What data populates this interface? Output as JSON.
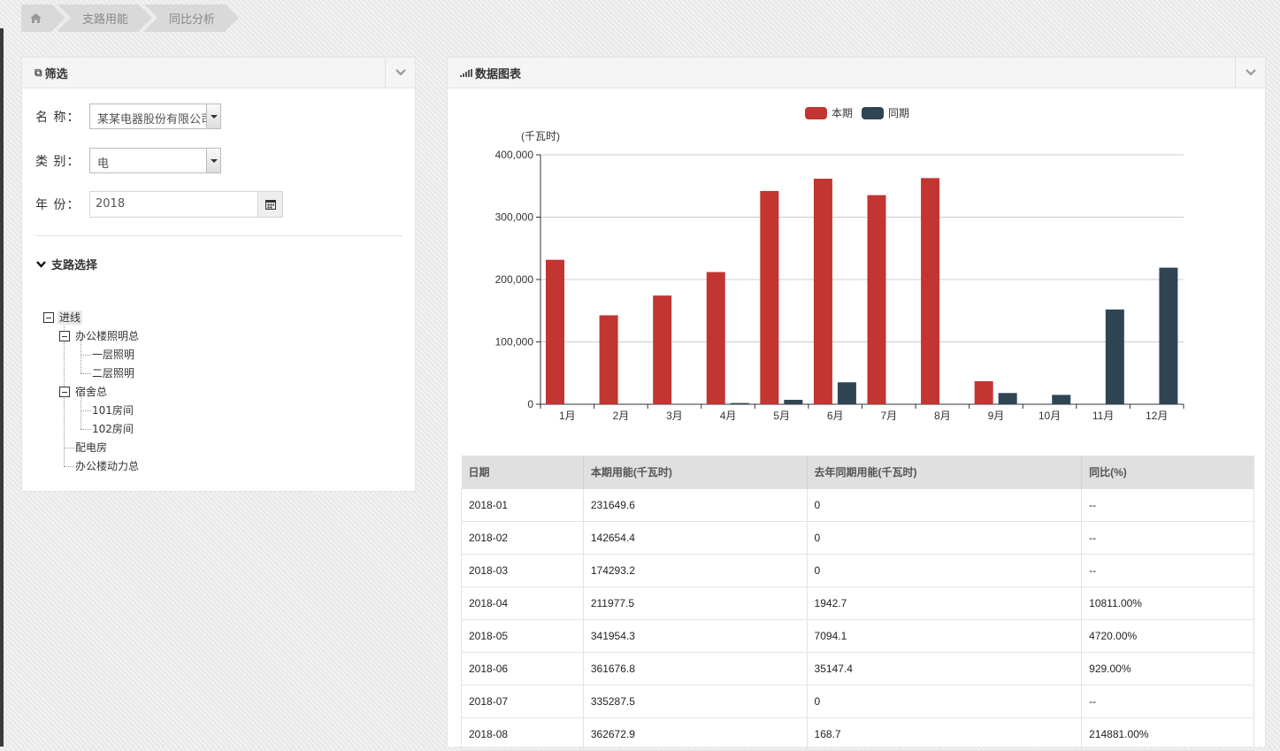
{
  "breadcrumb": {
    "home_icon": "home-icon",
    "items": [
      "支路用能",
      "同比分析"
    ]
  },
  "filter": {
    "title": "筛选",
    "title_icon": "copy-icon",
    "name_label": "名 称：",
    "name_value": "某某电器股份有限公司",
    "category_label": "类 别：",
    "category_value": "电",
    "year_label": "年 份：",
    "year_value": "2018",
    "branch_title": "支路选择",
    "tree": {
      "root": "进线",
      "office_lighting": "办公楼照明总",
      "floor1": "一层照明",
      "floor2": "二层照明",
      "dorm": "宿舍总",
      "room101": "101房间",
      "room102": "102房间",
      "power_room": "配电房",
      "office_power": "办公楼动力总"
    }
  },
  "chart_panel": {
    "title": "数据图表",
    "title_icon": "signal-bars-icon"
  },
  "chart_data": {
    "type": "bar",
    "ylabel": "(千瓦时)",
    "ylim": [
      0,
      400000
    ],
    "yticks": [
      "0",
      "100,000",
      "200,000",
      "300,000",
      "400,000"
    ],
    "categories": [
      "1月",
      "2月",
      "3月",
      "4月",
      "5月",
      "6月",
      "7月",
      "8月",
      "9月",
      "10月",
      "11月",
      "12月"
    ],
    "series": [
      {
        "name": "本期",
        "color": "#c23531",
        "values": [
          231649.6,
          142654.4,
          174293.2,
          211977.5,
          341954.3,
          361676.8,
          335287.5,
          362672.9,
          37000,
          0,
          0,
          0
        ]
      },
      {
        "name": "同期",
        "color": "#2f4554",
        "values": [
          0,
          0,
          0,
          1942.7,
          7094.1,
          35147.4,
          0,
          168.7,
          18000,
          15000,
          152000,
          219000
        ]
      }
    ]
  },
  "table": {
    "headers": [
      "日期",
      "本期用能(千瓦时)",
      "去年同期用能(千瓦时)",
      "同比(%)"
    ],
    "rows": [
      [
        "2018-01",
        "231649.6",
        "0",
        "--"
      ],
      [
        "2018-02",
        "142654.4",
        "0",
        "--"
      ],
      [
        "2018-03",
        "174293.2",
        "0",
        "--"
      ],
      [
        "2018-04",
        "211977.5",
        "1942.7",
        "10811.00%"
      ],
      [
        "2018-05",
        "341954.3",
        "7094.1",
        "4720.00%"
      ],
      [
        "2018-06",
        "361676.8",
        "35147.4",
        "929.00%"
      ],
      [
        "2018-07",
        "335287.5",
        "0",
        "--"
      ],
      [
        "2018-08",
        "362672.9",
        "168.7",
        "214881.00%"
      ]
    ]
  }
}
